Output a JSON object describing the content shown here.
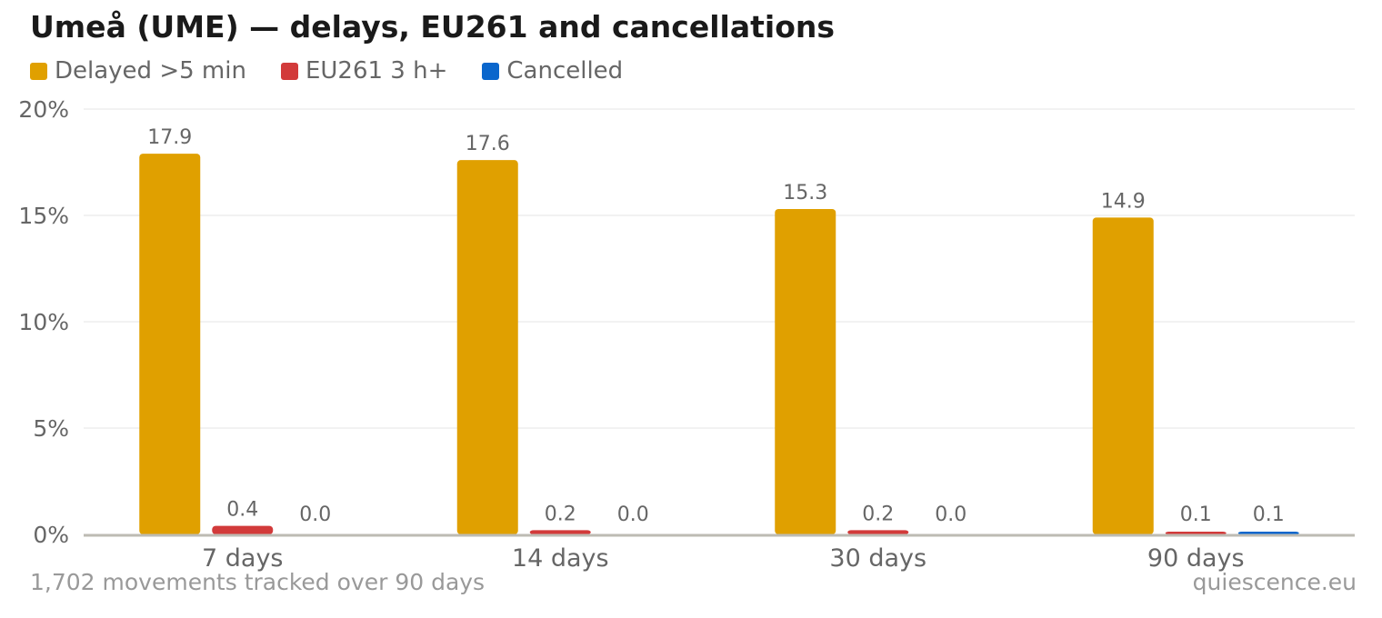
{
  "title": "Umeå (UME) — delays, EU261 and cancellations",
  "legend": [
    {
      "label": "Delayed >5 min",
      "color": "#E0A000"
    },
    {
      "label": "EU261 3 h+",
      "color": "#D23A3A"
    },
    {
      "label": "Cancelled",
      "color": "#0A66CC"
    }
  ],
  "footer": {
    "note": "1,702 movements tracked over 90 days",
    "source": "quiescence.eu"
  },
  "chart_data": {
    "type": "bar",
    "categories": [
      "7 days",
      "14 days",
      "30 days",
      "90 days"
    ],
    "series": [
      {
        "name": "Delayed >5 min",
        "color": "#E0A000",
        "values": [
          17.9,
          17.6,
          15.3,
          14.9
        ],
        "labels": [
          "17.9",
          "17.6",
          "15.3",
          "14.9"
        ]
      },
      {
        "name": "EU261 3 h+",
        "color": "#D23A3A",
        "values": [
          0.4,
          0.2,
          0.2,
          0.1
        ],
        "labels": [
          "0.4",
          "0.2",
          "0.2",
          "0.1"
        ]
      },
      {
        "name": "Cancelled",
        "color": "#0A66CC",
        "values": [
          0.0,
          0.0,
          0.0,
          0.1
        ],
        "labels": [
          "0.0",
          "0.0",
          "0.0",
          "0.1"
        ]
      }
    ],
    "yticks": [
      0,
      5,
      10,
      15,
      20
    ],
    "ytick_labels": [
      "0%",
      "5%",
      "10%",
      "15%",
      "20%"
    ],
    "ylim": [
      0,
      20
    ],
    "grid": true,
    "legend_position": "top-left"
  }
}
